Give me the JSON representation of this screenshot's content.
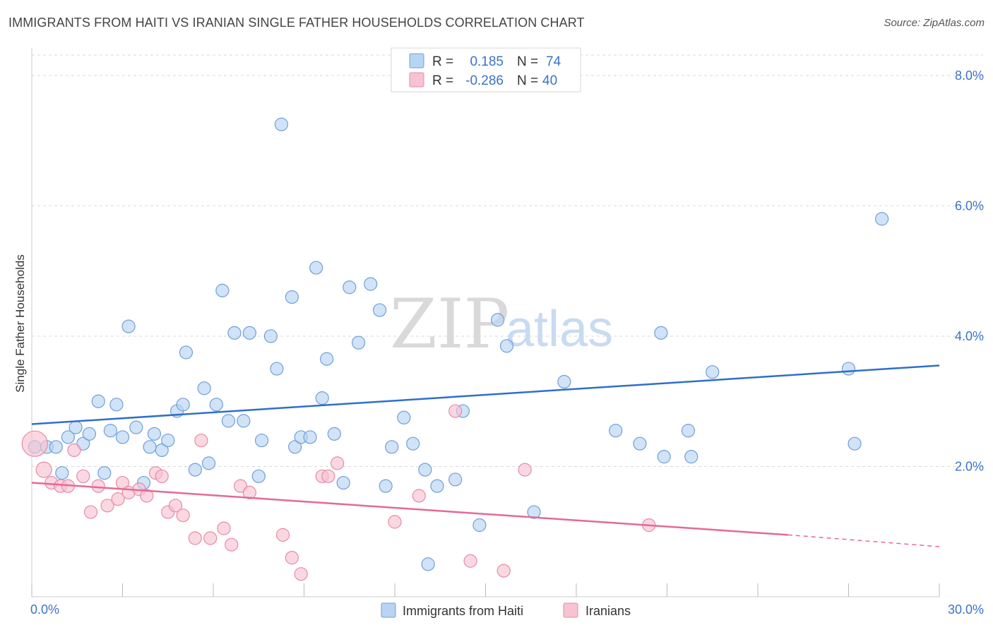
{
  "title": "IMMIGRANTS FROM HAITI VS IRANIAN SINGLE FATHER HOUSEHOLDS CORRELATION CHART",
  "source": "Source: ZipAtlas.com",
  "watermark": {
    "zip": "ZIP",
    "atlas": "atlas"
  },
  "colors": {
    "blue_fill": "#b9d4f3",
    "blue_stroke": "#6f9fd8",
    "blue_line": "#2f6fcb",
    "pink_fill": "#f7c3d3",
    "pink_stroke": "#e88aa8",
    "pink_line": "#e46a95",
    "grid": "#d9d9d9",
    "tick_text": "#3b73c7"
  },
  "legend": {
    "rows": [
      {
        "r_label": "R =",
        "r_value": "0.185",
        "n_label": "N =",
        "n_value": "74"
      },
      {
        "r_label": "R =",
        "r_value": "-0.286",
        "n_label": "N =",
        "n_value": "40"
      }
    ]
  },
  "chart_data": {
    "type": "scatter",
    "title": "IMMIGRANTS FROM HAITI VS IRANIAN SINGLE FATHER HOUSEHOLDS CORRELATION CHART",
    "xlabel": "",
    "ylabel": "Single Father Households",
    "xlim": [
      0,
      30
    ],
    "ylim": [
      0,
      8.4
    ],
    "x_tick_labels": [
      "0.0%",
      "30.0%"
    ],
    "x_minor_ticks": [
      0,
      3,
      6,
      9,
      12,
      15,
      18,
      21,
      24,
      27,
      30
    ],
    "y_ticks": [
      2,
      4,
      6,
      8
    ],
    "y_tick_labels": [
      "2.0%",
      "4.0%",
      "6.0%",
      "8.0%"
    ],
    "grid": true,
    "legend_position": "top-center",
    "series": [
      {
        "name": "Immigrants from Haiti",
        "color": "#b9d4f3",
        "trend": {
          "x": [
            0,
            30
          ],
          "y": [
            2.65,
            3.55
          ]
        },
        "points": [
          [
            0.1,
            2.3
          ],
          [
            0.5,
            2.3
          ],
          [
            0.8,
            2.3
          ],
          [
            1.0,
            1.9
          ],
          [
            1.2,
            2.45
          ],
          [
            1.45,
            2.6
          ],
          [
            1.7,
            2.35
          ],
          [
            1.9,
            2.5
          ],
          [
            2.2,
            3.0
          ],
          [
            2.4,
            1.9
          ],
          [
            2.6,
            2.55
          ],
          [
            2.8,
            2.95
          ],
          [
            3.0,
            2.45
          ],
          [
            3.2,
            4.15
          ],
          [
            3.45,
            2.6
          ],
          [
            3.7,
            1.75
          ],
          [
            3.9,
            2.3
          ],
          [
            4.05,
            2.5
          ],
          [
            4.3,
            2.25
          ],
          [
            4.5,
            2.4
          ],
          [
            4.8,
            2.85
          ],
          [
            5.0,
            2.95
          ],
          [
            5.1,
            3.75
          ],
          [
            5.4,
            1.95
          ],
          [
            5.7,
            3.2
          ],
          [
            5.85,
            2.05
          ],
          [
            6.1,
            2.95
          ],
          [
            6.3,
            4.7
          ],
          [
            6.5,
            2.7
          ],
          [
            6.7,
            4.05
          ],
          [
            7.0,
            2.7
          ],
          [
            7.2,
            4.05
          ],
          [
            7.5,
            1.85
          ],
          [
            7.6,
            2.4
          ],
          [
            7.9,
            4.0
          ],
          [
            8.1,
            3.5
          ],
          [
            8.25,
            7.25
          ],
          [
            8.6,
            4.6
          ],
          [
            8.7,
            2.3
          ],
          [
            8.9,
            2.45
          ],
          [
            9.2,
            2.45
          ],
          [
            9.4,
            5.05
          ],
          [
            9.6,
            3.05
          ],
          [
            9.75,
            3.65
          ],
          [
            10.0,
            2.5
          ],
          [
            10.3,
            1.75
          ],
          [
            10.5,
            4.75
          ],
          [
            10.8,
            3.9
          ],
          [
            11.2,
            4.8
          ],
          [
            11.5,
            4.4
          ],
          [
            11.7,
            1.7
          ],
          [
            11.9,
            2.3
          ],
          [
            12.3,
            2.75
          ],
          [
            12.6,
            2.35
          ],
          [
            13.0,
            1.95
          ],
          [
            13.1,
            0.5
          ],
          [
            13.4,
            1.7
          ],
          [
            14.0,
            1.8
          ],
          [
            14.25,
            2.85
          ],
          [
            14.8,
            1.1
          ],
          [
            15.4,
            4.25
          ],
          [
            15.7,
            3.85
          ],
          [
            16.6,
            1.3
          ],
          [
            17.6,
            3.3
          ],
          [
            19.3,
            2.55
          ],
          [
            20.1,
            2.35
          ],
          [
            20.8,
            4.05
          ],
          [
            20.9,
            2.15
          ],
          [
            21.7,
            2.55
          ],
          [
            21.8,
            2.15
          ],
          [
            22.5,
            3.45
          ],
          [
            27.0,
            3.5
          ],
          [
            27.2,
            2.35
          ],
          [
            28.1,
            5.8
          ]
        ]
      },
      {
        "name": "Iranians",
        "color": "#f7c3d3",
        "trend": {
          "x": [
            0,
            25
          ],
          "y": [
            1.75,
            0.95
          ]
        },
        "trend_dashed": {
          "x": [
            25,
            30
          ],
          "y": [
            0.95,
            0.77
          ]
        },
        "points": [
          [
            0.1,
            2.35
          ],
          [
            0.4,
            1.95
          ],
          [
            0.65,
            1.75
          ],
          [
            0.95,
            1.7
          ],
          [
            1.2,
            1.7
          ],
          [
            1.4,
            2.25
          ],
          [
            1.7,
            1.85
          ],
          [
            1.95,
            1.3
          ],
          [
            2.2,
            1.7
          ],
          [
            2.5,
            1.4
          ],
          [
            2.85,
            1.5
          ],
          [
            3.0,
            1.75
          ],
          [
            3.2,
            1.6
          ],
          [
            3.55,
            1.65
          ],
          [
            3.8,
            1.55
          ],
          [
            4.1,
            1.9
          ],
          [
            4.3,
            1.85
          ],
          [
            4.5,
            1.3
          ],
          [
            4.75,
            1.4
          ],
          [
            5.0,
            1.25
          ],
          [
            5.4,
            0.9
          ],
          [
            5.6,
            2.4
          ],
          [
            5.9,
            0.9
          ],
          [
            6.35,
            1.05
          ],
          [
            6.6,
            0.8
          ],
          [
            6.9,
            1.7
          ],
          [
            7.2,
            1.6
          ],
          [
            8.3,
            0.95
          ],
          [
            8.6,
            0.6
          ],
          [
            8.9,
            0.35
          ],
          [
            9.6,
            1.85
          ],
          [
            9.8,
            1.85
          ],
          [
            10.1,
            2.05
          ],
          [
            12.0,
            1.15
          ],
          [
            12.8,
            1.55
          ],
          [
            14.0,
            2.85
          ],
          [
            14.5,
            0.55
          ],
          [
            15.6,
            0.4
          ],
          [
            16.3,
            1.95
          ],
          [
            20.4,
            1.1
          ]
        ]
      }
    ]
  }
}
